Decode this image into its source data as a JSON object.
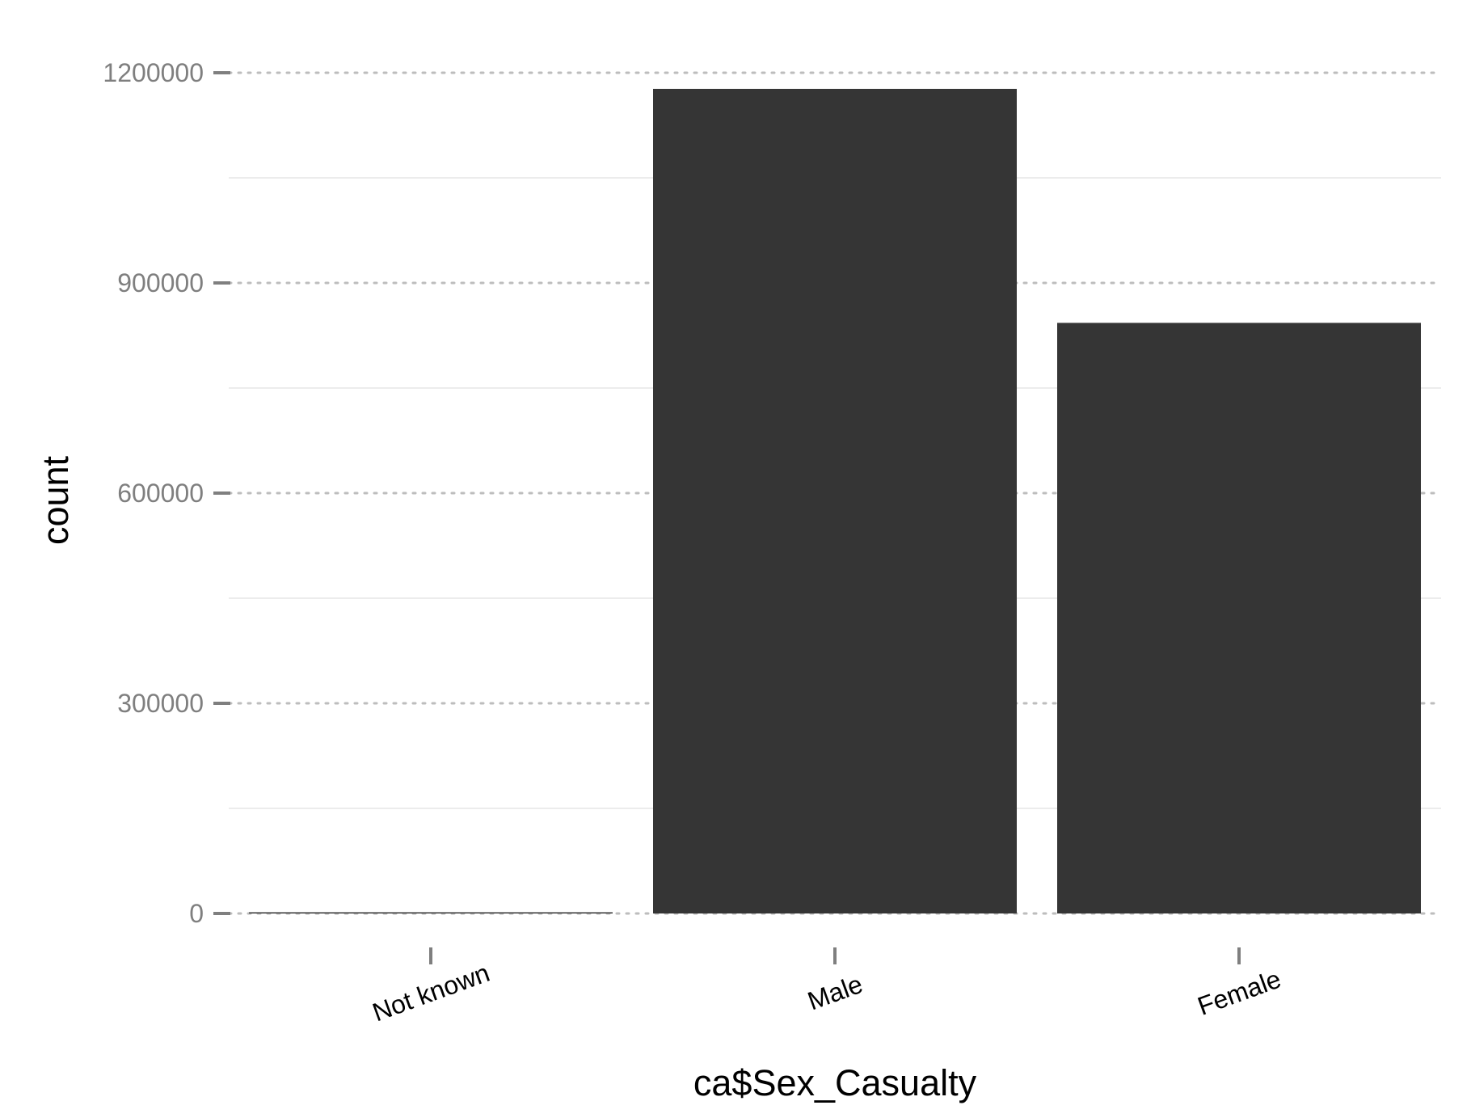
{
  "chart_data": {
    "type": "bar",
    "categories": [
      "Not known",
      "Male",
      "Female"
    ],
    "values": [
      100,
      1177000,
      843000
    ],
    "xlabel": "ca$Sex_Casualty",
    "ylabel": "count",
    "ylim": [
      0,
      1200000
    ],
    "yticks": [
      0,
      300000,
      600000,
      900000,
      1200000
    ],
    "ytick_labels": [
      "0",
      "300000",
      "600000",
      "900000",
      "1200000"
    ],
    "grid": true,
    "legend": "none",
    "bar_color": "#353535",
    "major_grid_color": "#bdbdbd",
    "minor_grid_color": "#ececec",
    "tick_color": "#7f7f7f"
  }
}
